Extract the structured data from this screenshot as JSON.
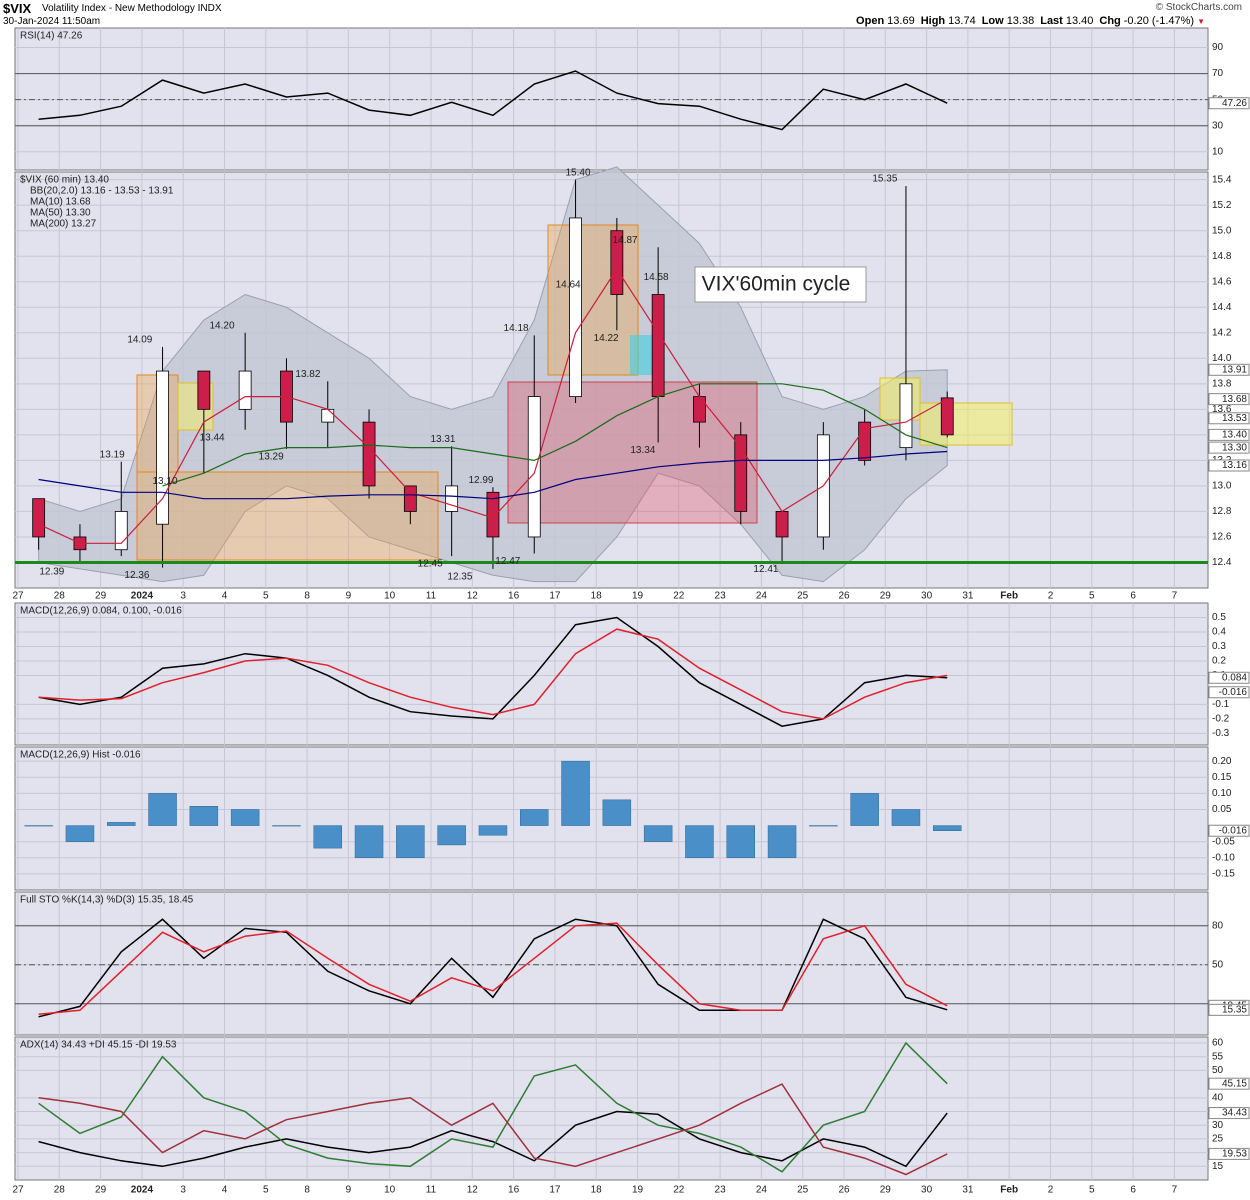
{
  "header": {
    "symbol": "$VIX",
    "name": "Volatility Index - New Methodology INDX",
    "timestamp": "30-Jan-2024 11:50am",
    "quote": [
      {
        "label": "Open",
        "value": "13.69"
      },
      {
        "label": "High",
        "value": "13.74"
      },
      {
        "label": "Low",
        "value": "13.38"
      },
      {
        "label": "Last",
        "value": "13.40"
      },
      {
        "label": "Chg",
        "value": "-0.20 (-1.47%)"
      }
    ],
    "credit": "© StockCharts.com"
  },
  "x_axis": {
    "categories": [
      "27",
      "28",
      "29",
      "2024",
      "3",
      "4",
      "5",
      "8",
      "9",
      "10",
      "11",
      "12",
      "16",
      "17",
      "18",
      "19",
      "22",
      "23",
      "24",
      "25",
      "26",
      "29",
      "30",
      "31",
      "Feb",
      "2",
      "5",
      "6",
      "7"
    ]
  },
  "chart_data": [
    {
      "type": "line",
      "title": "RSI(14) 47.26",
      "ylim": [
        -4,
        105
      ],
      "yticks": [
        10,
        30,
        50,
        70,
        90
      ],
      "levels": [
        30,
        50,
        70
      ],
      "series": [
        {
          "color": "#000000",
          "values": [
            35,
            38,
            45,
            65,
            55,
            62,
            52,
            55,
            42,
            38,
            48,
            38,
            62,
            72,
            55,
            47,
            45,
            35,
            27,
            58,
            50,
            62,
            47.26,
            null,
            null,
            null,
            null,
            null,
            null
          ]
        }
      ],
      "tags": [
        47.26
      ]
    },
    {
      "type": "candlestick",
      "title": "$VIX (60 min) 13.40",
      "ylim": [
        12.2,
        15.46
      ],
      "yticks": [
        12.4,
        12.6,
        12.8,
        {
          "value": 13,
          "label": "13.0"
        },
        13.2,
        13.4,
        13.6,
        13.8,
        {
          "value": 14,
          "label": "14.0"
        },
        14.2,
        14.4,
        14.6,
        14.8,
        {
          "value": 15,
          "label": "15.0"
        },
        15.2,
        15.4
      ],
      "open": [
        12.9,
        12.6,
        12.5,
        12.7,
        13.9,
        13.6,
        13.9,
        13.5,
        13.5,
        13.0,
        12.8,
        12.95,
        12.6,
        13.7,
        15.0,
        14.5,
        13.7,
        13.4,
        12.8,
        12.6,
        13.5,
        13.3,
        13.69,
        null,
        null,
        null,
        null,
        null,
        null
      ],
      "high": [
        12.9,
        12.7,
        13.19,
        14.09,
        13.9,
        14.2,
        14.0,
        13.82,
        13.6,
        13.0,
        13.31,
        12.99,
        14.18,
        15.4,
        15.1,
        14.87,
        13.8,
        13.5,
        12.8,
        13.5,
        13.6,
        15.35,
        13.74,
        null,
        null,
        null,
        null,
        null,
        null
      ],
      "low": [
        12.5,
        12.39,
        12.45,
        12.36,
        13.1,
        13.44,
        13.29,
        13.3,
        12.9,
        12.7,
        12.45,
        12.35,
        12.47,
        13.65,
        14.22,
        13.34,
        13.3,
        12.7,
        12.41,
        12.5,
        13.16,
        13.2,
        13.38,
        null,
        null,
        null,
        null,
        null,
        null
      ],
      "close": [
        12.6,
        12.5,
        12.8,
        13.9,
        13.6,
        13.9,
        13.5,
        13.6,
        13.0,
        12.8,
        13.0,
        12.6,
        13.7,
        15.1,
        14.5,
        13.7,
        13.5,
        12.8,
        12.6,
        13.4,
        13.2,
        13.8,
        13.4,
        null,
        null,
        null,
        null,
        null,
        null
      ],
      "up_color": "#ffffff",
      "down_color": "#cc1e4a",
      "band": {
        "name": "BB(20,2.0) 13.16 - 13.53 - 13.91",
        "color": "#9aa0b0",
        "upper": [
          12.9,
          12.8,
          12.9,
          13.9,
          14.3,
          14.5,
          14.4,
          14.2,
          14.0,
          13.7,
          13.6,
          13.7,
          14.3,
          15.4,
          15.5,
          15.2,
          14.9,
          14.4,
          13.7,
          13.6,
          13.7,
          13.9,
          13.91,
          null,
          null,
          null,
          null,
          null,
          null
        ],
        "lower": [
          12.4,
          12.35,
          12.3,
          12.25,
          12.3,
          12.8,
          13.0,
          12.9,
          12.6,
          12.5,
          12.4,
          12.3,
          12.25,
          12.25,
          12.6,
          13.1,
          13.0,
          12.7,
          12.3,
          12.25,
          12.5,
          12.9,
          13.16,
          null,
          null,
          null,
          null,
          null,
          null
        ]
      },
      "series": [
        {
          "name": "MA(10) 13.68",
          "color": "#cc1e3c",
          "values": [
            12.7,
            12.55,
            12.55,
            12.9,
            13.5,
            13.7,
            13.7,
            13.6,
            13.3,
            12.95,
            12.85,
            12.75,
            13.1,
            14.2,
            14.7,
            14.2,
            13.7,
            13.3,
            12.8,
            13.0,
            13.45,
            13.5,
            13.68,
            null,
            null,
            null,
            null,
            null,
            null
          ]
        },
        {
          "name": "MA(50) 13.30",
          "color": "#1a6b1a",
          "values": [
            null,
            null,
            null,
            13.0,
            13.1,
            13.25,
            13.3,
            13.3,
            13.32,
            13.3,
            13.3,
            13.25,
            13.2,
            13.35,
            13.55,
            13.7,
            13.8,
            13.8,
            13.8,
            13.75,
            13.6,
            13.4,
            13.3,
            null,
            null,
            null,
            null,
            null,
            null
          ]
        },
        {
          "name": "MA(200) 13.27",
          "color": "#00007f",
          "values": [
            13.05,
            13.0,
            12.95,
            12.95,
            12.9,
            12.9,
            12.9,
            12.92,
            12.93,
            12.93,
            12.92,
            12.9,
            12.95,
            13.05,
            13.1,
            13.15,
            13.18,
            13.2,
            13.2,
            13.2,
            13.22,
            13.25,
            13.27,
            null,
            null,
            null,
            null,
            null,
            null
          ]
        }
      ],
      "hlines": [
        {
          "value": 12.4,
          "color": "#1a8a1a"
        }
      ],
      "point_labels": {
        "x": [
          0.82,
          2.88,
          2.28,
          2.95,
          3.56,
          4.94,
          4.7,
          6.13,
          7.02,
          10.29,
          9.98,
          10.7,
          11.21,
          11.86,
          12.06,
          13.56,
          13.32,
          14.7,
          14.24,
          15.45,
          15.13,
          18.11,
          20.99
        ],
        "values": [
          12.39,
          12.36,
          13.19,
          14.09,
          13.1,
          14.2,
          13.44,
          13.29,
          13.82,
          13.31,
          12.45,
          12.35,
          12.99,
          12.47,
          14.18,
          15.4,
          14.64,
          14.87,
          14.22,
          14.58,
          13.34,
          12.41,
          15.35
        ],
        "value_labels": [
          "12.39",
          "12.36",
          "13.19",
          "14.09",
          "13.10",
          "14.20",
          "13.44",
          "13.29",
          "13.82",
          "13.31",
          "12.45",
          "12.35",
          "12.99",
          "12.47",
          "14.18",
          "15.40",
          "14.64",
          "14.87",
          "14.22",
          "14.58",
          "13.34",
          "12.41",
          "15.35"
        ]
      },
      "annotation": "VIX'60min cycle",
      "tags": [
        {
          "value": 13.91,
          "label": "13.91"
        },
        {
          "value": 13.68,
          "label": "13.68"
        },
        {
          "value": 13.53,
          "label": "13.53"
        },
        {
          "value": 13.4,
          "label": "13.40"
        },
        {
          "value": 13.3,
          "label": "13.30"
        },
        {
          "value": 13.16,
          "label": "13.16"
        }
      ]
    },
    {
      "type": "line",
      "title": "MACD(12,26,9) 0.084, 0.100, -0.016",
      "ylim": [
        -0.38,
        0.6
      ],
      "yticks": [
        -0.3,
        -0.2,
        -0.1,
        0.1,
        0.2,
        0.3,
        0.4,
        0.5
      ],
      "series": [
        {
          "color": "#000000",
          "values": [
            -0.05,
            -0.1,
            -0.05,
            0.15,
            0.18,
            0.25,
            0.22,
            0.1,
            -0.05,
            -0.15,
            -0.18,
            -0.2,
            0.1,
            0.45,
            0.5,
            0.3,
            0.05,
            -0.1,
            -0.25,
            -0.2,
            0.05,
            0.1,
            0.084,
            null,
            null,
            null,
            null,
            null,
            null
          ]
        },
        {
          "color": "#e0202a",
          "values": [
            -0.05,
            -0.07,
            -0.06,
            0.05,
            0.12,
            0.2,
            0.22,
            0.17,
            0.05,
            -0.05,
            -0.12,
            -0.17,
            -0.1,
            0.25,
            0.42,
            0.35,
            0.15,
            0,
            -0.15,
            -0.2,
            -0.05,
            0.05,
            0.1,
            null,
            null,
            null,
            null,
            null,
            null
          ]
        }
      ],
      "tags": [
        0.084,
        -0.016
      ]
    },
    {
      "type": "bar",
      "title": "MACD(12,26,9) Hist -0.016",
      "color": "#4a8fc7",
      "ylim": [
        -0.2,
        0.244
      ],
      "yticks": [
        {
          "value": -0.15,
          "label": "-0.15"
        },
        {
          "value": -0.1,
          "label": "-0.10"
        },
        {
          "value": -0.05,
          "label": "-0.05"
        },
        {
          "value": 0.05,
          "label": "0.05"
        },
        {
          "value": 0.1,
          "label": "0.10"
        },
        {
          "value": 0.15,
          "label": "0.15"
        },
        {
          "value": 0.2,
          "label": "0.20"
        }
      ],
      "values": [
        0,
        -0.05,
        0.01,
        0.1,
        0.06,
        0.05,
        0,
        -0.07,
        -0.1,
        -0.1,
        -0.06,
        -0.03,
        0.05,
        0.2,
        0.08,
        -0.05,
        -0.1,
        -0.1,
        -0.1,
        0,
        0.1,
        0.05,
        -0.016,
        null,
        null,
        null,
        null,
        null,
        null
      ],
      "tags": [
        -0.016
      ]
    },
    {
      "type": "line",
      "title": "Full STO %K(14,3) %D(3) 15.35, 18.45",
      "ylim": [
        -4,
        106
      ],
      "yticks": [
        50,
        80
      ],
      "levels": [
        20,
        50,
        80
      ],
      "series": [
        {
          "color": "#000000",
          "values": [
            10,
            18,
            60,
            85,
            55,
            78,
            75,
            45,
            30,
            20,
            55,
            25,
            70,
            85,
            80,
            35,
            15,
            15,
            15,
            85,
            70,
            25,
            15.35,
            null,
            null,
            null,
            null,
            null,
            null
          ]
        },
        {
          "color": "#e0202a",
          "values": [
            12,
            15,
            45,
            75,
            60,
            72,
            76,
            55,
            35,
            22,
            40,
            30,
            55,
            80,
            82,
            50,
            20,
            15,
            15,
            70,
            80,
            35,
            18.45,
            null,
            null,
            null,
            null,
            null,
            null
          ]
        }
      ],
      "tags": [
        18.45,
        15.35
      ]
    },
    {
      "type": "line",
      "title": "ADX(14) 34.43 +DI 45.15 -DI 19.53",
      "ylim": [
        10,
        62.2
      ],
      "yticks": [
        15,
        20,
        25,
        30,
        35,
        40,
        50,
        55,
        60
      ],
      "series": [
        {
          "color": "#000000",
          "values": [
            24,
            20,
            17,
            15,
            18,
            22,
            25,
            22,
            20,
            22,
            28,
            24,
            17,
            30,
            35,
            34,
            25,
            20,
            17,
            25,
            22,
            15,
            34.43,
            null,
            null,
            null,
            null,
            null,
            null
          ]
        },
        {
          "color": "#2e7d32",
          "values": [
            38,
            27,
            33,
            55,
            40,
            35,
            23,
            18,
            16,
            15,
            25,
            22,
            48,
            52,
            38,
            30,
            27,
            22,
            13,
            30,
            35,
            60,
            45.15,
            null,
            null,
            null,
            null,
            null,
            null
          ]
        },
        {
          "color": "#a0303c",
          "values": [
            40,
            38,
            35,
            20,
            28,
            25,
            32,
            35,
            38,
            40,
            30,
            38,
            18,
            15,
            20,
            25,
            30,
            38,
            45,
            22,
            18,
            12,
            19.53,
            null,
            null,
            null,
            null,
            null,
            null
          ]
        }
      ],
      "tags": [
        45.15,
        34.43,
        19.53
      ]
    }
  ]
}
